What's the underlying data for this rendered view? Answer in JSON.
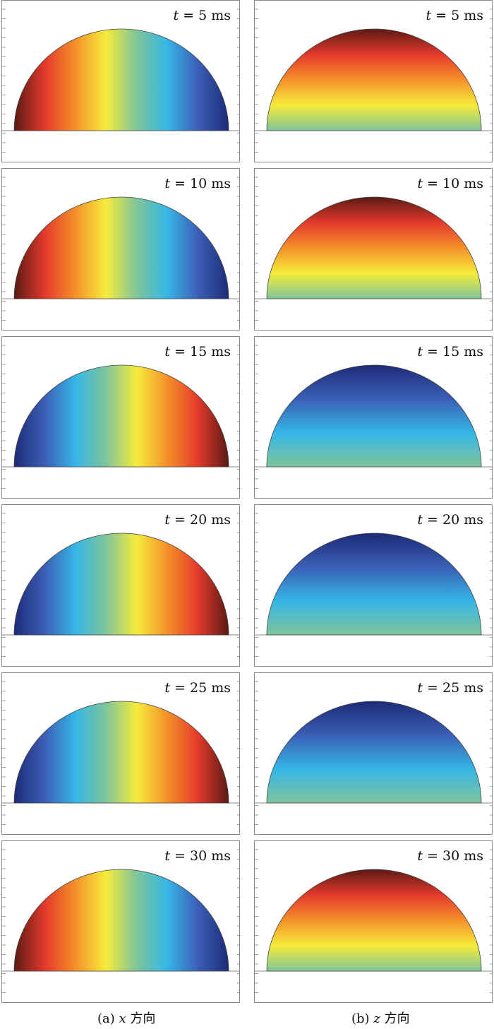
{
  "panels": [
    {
      "id": "a",
      "caption_prefix": "(a)",
      "caption_var": "x",
      "caption_suffix": "方向"
    },
    {
      "id": "b",
      "caption_prefix": "(b)",
      "caption_var": "z",
      "caption_suffix": "方向"
    }
  ],
  "time_var": "t",
  "time_labels": [
    "= 5 ms",
    "= 10 ms",
    "= 15 ms",
    "= 20 ms",
    "= 25 ms",
    "= 30 ms"
  ],
  "colormap": "jet",
  "colors": {
    "dark_blue": "#1e2a78",
    "blue": "#3a5fb5",
    "cyan": "#35b6e8",
    "green": "#7fc49a",
    "yellow": "#f5ec3a",
    "orange": "#f5902a",
    "red": "#e3392b",
    "dark_red": "#5b1a14",
    "frame": "#8a8a8a"
  },
  "fields": {
    "x": [
      "red-left",
      "red-left",
      "blue-left",
      "blue-left",
      "blue-left",
      "red-left"
    ],
    "z": [
      "red-top",
      "red-top",
      "blue-top",
      "blue-top",
      "blue-top",
      "red-top"
    ]
  }
}
